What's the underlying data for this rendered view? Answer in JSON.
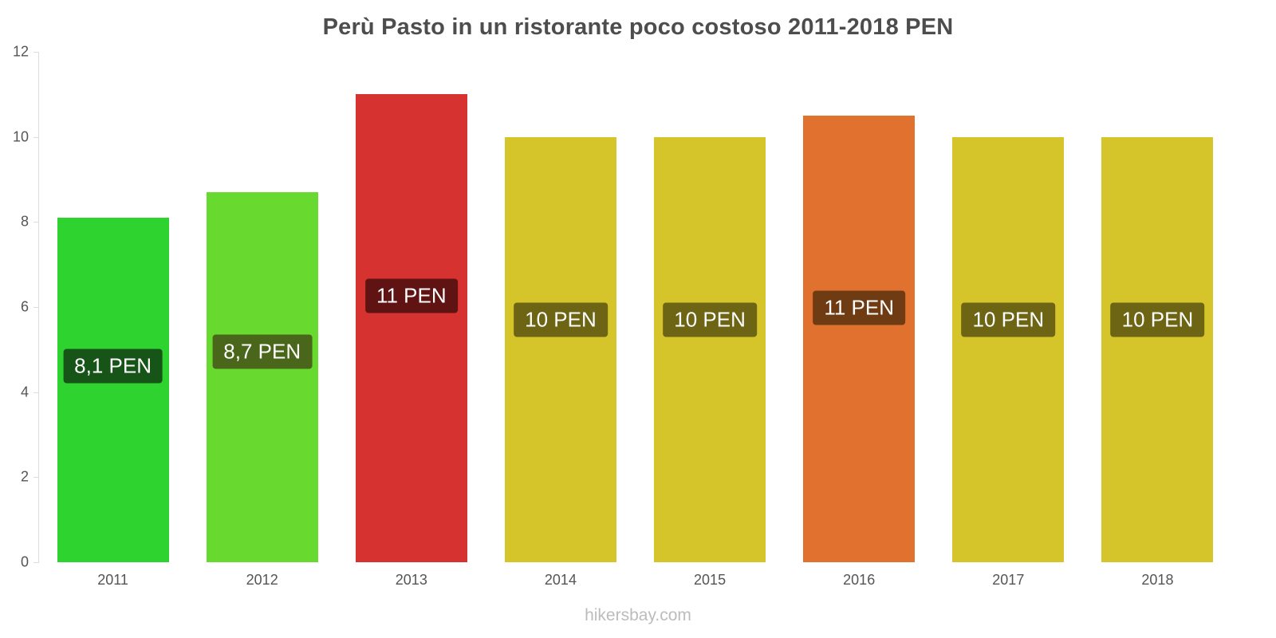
{
  "chart_data": {
    "type": "bar",
    "title": "Perù Pasto in un ristorante poco costoso 2011-2018 PEN",
    "categories": [
      "2011",
      "2012",
      "2013",
      "2014",
      "2015",
      "2016",
      "2017",
      "2018"
    ],
    "values": [
      8.1,
      8.7,
      11,
      10,
      10,
      10.5,
      10,
      10
    ],
    "bar_labels": [
      "8,1 PEN",
      "8,7 PEN",
      "11 PEN",
      "10 PEN",
      "10 PEN",
      "11 PEN",
      "10 PEN",
      "10 PEN"
    ],
    "bar_colors": [
      "#2fd32f",
      "#68d92e",
      "#d63230",
      "#d5c52b",
      "#d5c52b",
      "#e0712e",
      "#d5c52b",
      "#d5c52b"
    ],
    "label_bg_colors": [
      "#175417",
      "#4a661b",
      "#5f1312",
      "#6d6414",
      "#6d6414",
      "#6e3b12",
      "#6d6414",
      "#6d6414"
    ],
    "xlabel": "",
    "ylabel": "",
    "ylim": [
      0,
      12
    ],
    "yticks": [
      0,
      2,
      4,
      6,
      8,
      10,
      12
    ],
    "grid": false,
    "legend": false
  },
  "footer": {
    "text": "hikersbay.com"
  }
}
